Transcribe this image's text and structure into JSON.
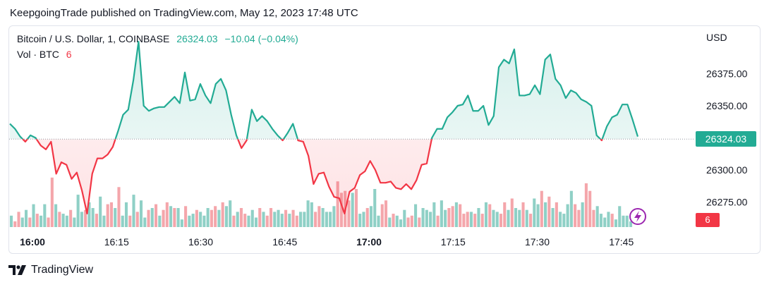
{
  "header": {
    "text": "KeepgoingTrade published on TradingView.com, May 12, 2023 17:48 UTC"
  },
  "legend": {
    "symbol": "Bitcoin / U.S. Dollar, 1, COINBASE",
    "price": "26324.03",
    "change": "−10.04 (−0.04%)",
    "vol_label": "Vol · BTC",
    "vol_value": "6"
  },
  "axis": {
    "currency": "USD",
    "price_badge": "26324.03",
    "vol_badge": "6"
  },
  "footer": {
    "brand": "TradingView"
  },
  "colors": {
    "up": "#22ab94",
    "down": "#f23645",
    "vol_up": "#8fd0c6",
    "vol_down": "#f4a6ab"
  },
  "icons": {
    "lightning": "lightning-icon",
    "logo": "tradingview-logo-icon"
  },
  "chart_data": {
    "type": "line",
    "title": "Bitcoin / U.S. Dollar, 1, COINBASE",
    "baseline": 26324.03,
    "y_ticks": [
      "26375.00",
      "26350.00",
      "26300.00",
      "26275.00"
    ],
    "y_tick_values": [
      26375,
      26350,
      26300,
      26275
    ],
    "x_ticks": [
      {
        "label": "16:00",
        "minute": 0,
        "bold": true
      },
      {
        "label": "16:15",
        "minute": 15,
        "bold": false
      },
      {
        "label": "16:30",
        "minute": 30,
        "bold": false
      },
      {
        "label": "16:45",
        "minute": 45,
        "bold": false
      },
      {
        "label": "17:00",
        "minute": 60,
        "bold": true
      },
      {
        "label": "17:15",
        "minute": 75,
        "bold": false
      },
      {
        "label": "17:30",
        "minute": 90,
        "bold": false
      },
      {
        "label": "17:45",
        "minute": 105,
        "bold": false
      }
    ],
    "x_minute_start": -4,
    "price": [
      26336,
      26332,
      26326,
      26322,
      26327,
      26325,
      26319,
      26316,
      26322,
      26297,
      26306,
      26304,
      26293,
      26298,
      26284,
      26266,
      26297,
      26309,
      26309,
      26312,
      26318,
      26330,
      26343,
      26347,
      26370,
      26400,
      26350,
      26346,
      26348,
      26349,
      26349,
      26353,
      26357,
      26352,
      26376,
      26354,
      26355,
      26367,
      26358,
      26352,
      26367,
      26371,
      26362,
      26343,
      26327,
      26317,
      26323,
      26347,
      26338,
      26342,
      26338,
      26332,
      26327,
      26323,
      26329,
      26336,
      26323,
      26322,
      26311,
      26289,
      26297,
      26298,
      26287,
      26279,
      26278,
      26266,
      26283,
      26286,
      26296,
      26299,
      26307,
      26300,
      26290,
      26290,
      26291,
      26286,
      26285,
      26289,
      26285,
      26292,
      26304,
      26305,
      26325,
      26332,
      26332,
      26341,
      26345,
      26350,
      26351,
      26358,
      26346,
      26346,
      26350,
      26335,
      26342,
      26380,
      26386,
      26383,
      26394,
      26358,
      26358,
      26359,
      26366,
      26359,
      26386,
      26390,
      26371,
      26366,
      26356,
      26362,
      26360,
      26355,
      26353,
      26350,
      26327,
      26323,
      26334,
      26341,
      26343,
      26351,
      26351,
      26339,
      26326
    ],
    "volume": [
      6,
      3,
      8,
      5,
      9,
      5,
      12,
      7,
      6,
      12,
      5,
      26,
      12,
      8,
      7,
      6,
      9,
      5,
      17,
      8,
      9,
      13,
      10,
      7,
      16,
      6,
      12,
      13,
      10,
      21,
      6,
      13,
      6,
      17,
      8,
      14,
      5,
      9,
      10,
      12,
      6,
      9,
      13,
      11,
      10,
      10,
      4,
      11,
      6,
      7,
      9,
      8,
      6,
      10,
      9,
      11,
      9,
      13,
      11,
      14,
      6,
      8,
      10,
      7,
      6,
      9,
      5,
      10,
      8,
      6,
      10,
      8,
      9,
      7,
      9,
      7,
      9,
      6,
      8,
      8,
      14,
      13,
      8,
      11,
      10,
      8,
      8,
      11,
      24,
      18,
      19,
      14,
      18,
      20,
      7,
      8,
      10,
      11,
      20,
      6,
      12,
      14,
      5,
      7,
      6,
      4,
      9,
      5,
      6,
      12,
      5,
      10,
      9,
      8,
      13,
      6,
      14,
      9,
      10,
      11,
      13,
      12,
      7,
      8,
      8,
      7,
      10,
      7,
      13,
      12,
      9,
      8,
      7,
      13,
      9,
      15,
      10,
      9,
      13,
      9,
      7,
      15,
      12,
      19,
      13,
      16,
      10,
      13,
      8,
      7,
      12,
      19,
      12,
      9,
      13,
      23,
      19,
      9,
      11,
      7,
      5,
      8,
      7,
      4,
      11,
      6,
      6,
      3
    ],
    "volume_up": [
      true,
      false,
      false,
      true,
      true,
      false,
      true,
      false,
      true,
      true,
      false,
      false,
      true,
      false,
      true,
      true,
      false,
      true,
      true,
      true,
      false,
      true,
      true,
      false,
      true,
      true,
      false,
      false,
      true,
      false,
      true,
      true,
      false,
      true,
      false,
      true,
      true,
      false,
      true,
      false,
      true,
      false,
      false,
      true,
      false,
      true,
      true,
      false,
      true,
      true,
      false,
      true,
      true,
      true,
      false,
      false,
      true,
      false,
      true,
      true,
      false,
      true,
      false,
      false,
      true,
      true,
      true,
      false,
      true,
      false,
      false,
      true,
      true,
      true,
      false,
      true,
      false,
      false,
      true,
      true,
      true,
      true,
      false,
      false,
      true,
      true,
      true,
      true,
      false,
      false,
      false,
      false,
      true,
      false,
      true,
      true,
      false,
      true,
      true,
      true,
      false,
      false,
      true,
      false,
      true,
      true,
      true,
      false,
      false,
      true,
      false,
      true,
      true,
      true,
      true,
      false,
      true,
      true,
      false,
      false,
      true,
      false,
      false,
      false,
      true,
      false,
      true,
      false,
      true,
      false,
      true,
      true,
      false,
      false,
      true,
      false,
      true,
      true,
      false,
      true,
      false,
      true,
      true,
      false,
      true,
      false,
      true,
      false,
      true,
      true,
      true,
      true,
      false,
      false,
      true,
      false,
      false,
      false,
      true,
      true,
      true,
      true,
      false,
      true,
      true,
      true,
      true,
      true
    ]
  }
}
